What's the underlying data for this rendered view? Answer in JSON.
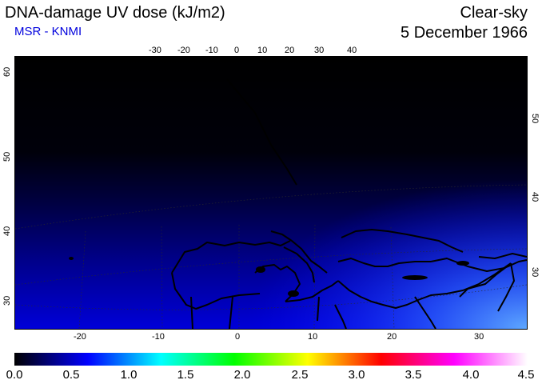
{
  "header": {
    "title": "DNA-damage UV dose (kJ/m2)",
    "source": "MSR - KNMI",
    "sky_condition": "Clear-sky",
    "date": "5 December 1966"
  },
  "map": {
    "region": "Europe / Mediterranean",
    "top_lon_labels": [
      "-30",
      "-20",
      "-10",
      "0",
      "10",
      "20",
      "30",
      "40"
    ],
    "bottom_lon_labels": [
      "-20",
      "-10",
      "0",
      "10",
      "20",
      "30"
    ],
    "left_lat_labels": [
      "60",
      "50",
      "40",
      "30"
    ],
    "right_lat_labels": [
      "50",
      "40",
      "30"
    ]
  },
  "colorbar": {
    "min": 0.0,
    "max": 4.5,
    "tick_labels": [
      "0.0",
      "0.5",
      "1.0",
      "1.5",
      "2.0",
      "2.5",
      "3.0",
      "3.5",
      "4.0",
      "4.5"
    ],
    "colors": [
      "#000000",
      "#0000ff",
      "#00ffff",
      "#00ff00",
      "#ffff00",
      "#ff0000",
      "#ff00ff",
      "#ffffff"
    ]
  }
}
